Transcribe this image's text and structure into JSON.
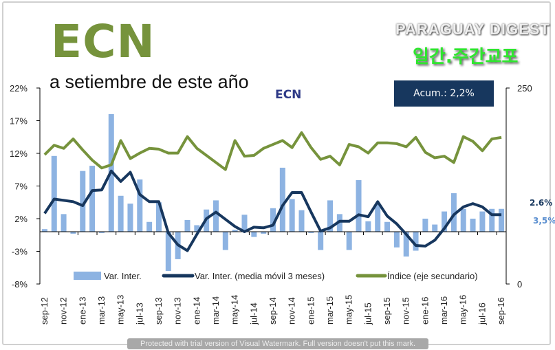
{
  "header": {
    "title": "ECN",
    "subtitle": "a setiembre de este año",
    "chart_label": "ECN",
    "acum": "Acum.: 2,2%"
  },
  "end_labels": {
    "moving_avg": "2.6%",
    "var_inter": "3,5%"
  },
  "watermarks": {
    "brand": "PARAGUAY DIGEST",
    "korean": "일간.주간교포",
    "trial": "Protected with trial version of Visual Watermark. Full version doesn't put this mark."
  },
  "colors": {
    "bars": "#8db3e2",
    "moving_avg": "#17375e",
    "index": "#76933c"
  },
  "chart_data": {
    "type": "bar+line",
    "title": "ECN",
    "x": [
      "sep-12",
      "oct-12",
      "nov-12",
      "dic-12",
      "ene-13",
      "feb-13",
      "mar-13",
      "abr-13",
      "may-13",
      "jun-13",
      "jul-13",
      "ago-13",
      "sep-13",
      "oct-13",
      "nov-13",
      "dic-13",
      "ene-14",
      "feb-14",
      "mar-14",
      "abr-14",
      "may-14",
      "jun-14",
      "jul-14",
      "ago-14",
      "sep-14",
      "oct-14",
      "nov-14",
      "dic-14",
      "ene-15",
      "feb-15",
      "mar-15",
      "abr-15",
      "may-15",
      "jun-15",
      "jul-15",
      "ago-15",
      "sep-15",
      "oct-15",
      "nov-15",
      "dic-15",
      "ene-16",
      "feb-16",
      "mar-16",
      "abr-16",
      "may-16",
      "jun-16",
      "jul-16",
      "ago-16",
      "sep-16"
    ],
    "x_tick_labels": [
      "sep-12",
      "nov-12",
      "ene-13",
      "mar-13",
      "may-13",
      "jul-13",
      "sep-13",
      "nov-13",
      "ene-14",
      "mar-14",
      "may-14",
      "jul-14",
      "sep-14",
      "nov-14",
      "ene-15",
      "mar-15",
      "may-15",
      "jul-15",
      "sep-15",
      "nov-15",
      "ene-16",
      "mar-16",
      "may-16",
      "jul-16",
      "sep-16"
    ],
    "y_ticks": [
      "22%",
      "17%",
      "12%",
      "7%",
      "2%",
      "-3%",
      "-8%"
    ],
    "ylim": [
      -8,
      22
    ],
    "y2_ticks": [
      "250",
      "0"
    ],
    "y2lim": [
      0,
      250
    ],
    "series": [
      {
        "name": "Var. Inter.",
        "type": "bar",
        "axis": "primary",
        "values": [
          0.4,
          11.6,
          2.7,
          -0.3,
          9.3,
          10.1,
          -0.2,
          18,
          5.5,
          4.3,
          8,
          1.5,
          4.5,
          -6,
          -4.2,
          1.8,
          1.0,
          3.4,
          4.8,
          -2.8,
          0.3,
          2.6,
          -0.8,
          -0.3,
          3.6,
          9.8,
          5.0,
          3.3,
          -0.2,
          -2.8,
          4.8,
          2.7,
          -2.8,
          7.9,
          1.6,
          4.3,
          1.5,
          -2.4,
          -3.8,
          -2.9,
          2.0,
          1.1,
          3.1,
          5.9,
          3.5,
          2.0,
          3.1,
          3.5,
          3.5
        ]
      },
      {
        "name": "Var. Inter. (media móvil 3 meses)",
        "type": "line",
        "axis": "primary",
        "values": [
          2.8,
          5.0,
          4.8,
          4.6,
          4.0,
          6.3,
          6.4,
          9.3,
          7.7,
          9.1,
          5.7,
          4.6,
          4.6,
          -0.2,
          -2.0,
          -2.9,
          -0.4,
          2.0,
          3.0,
          1.9,
          0.8,
          0.0,
          0.7,
          0.6,
          1.0,
          4.0,
          6.0,
          6.0,
          3.0,
          0.1,
          0.6,
          1.6,
          1.6,
          2.6,
          2.3,
          4.6,
          2.4,
          1.2,
          -0.4,
          -2.1,
          -2.2,
          -1.3,
          0.5,
          2.6,
          3.8,
          4.3,
          3.8,
          2.6,
          2.6
        ]
      },
      {
        "name": "Índice (eje secundario)",
        "type": "line",
        "axis": "secondary",
        "values": [
          165,
          177,
          173,
          185,
          171,
          158,
          148,
          152,
          183,
          160,
          167,
          173,
          172,
          167,
          167,
          188,
          173,
          164,
          155,
          146,
          183,
          163,
          164,
          173,
          178,
          183,
          174,
          193,
          174,
          159,
          163,
          152,
          178,
          175,
          167,
          180,
          180,
          179,
          175,
          187,
          168,
          161,
          163,
          155,
          188,
          182,
          170,
          185,
          187
        ]
      }
    ],
    "legend": "bottom",
    "grid": false
  }
}
